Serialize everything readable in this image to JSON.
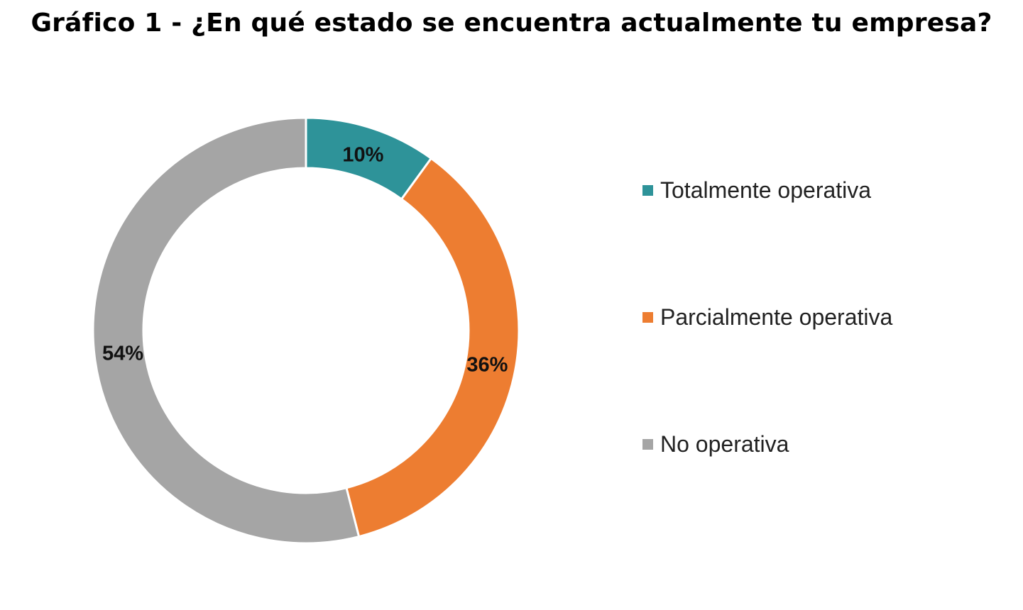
{
  "chart_data": {
    "type": "pie",
    "variant": "donut",
    "title": "Gráfico 1 - ¿En qué estado se encuentra actualmente tu empresa?",
    "categories": [
      "Totalmente operativa",
      "Parcialmente operativa",
      "No operativa"
    ],
    "values": [
      10,
      36,
      54
    ],
    "value_labels": [
      "10%",
      "36%",
      "54%"
    ],
    "colors": [
      "#2e9399",
      "#ed7d31",
      "#a5a5a5"
    ],
    "legend_position": "right"
  }
}
